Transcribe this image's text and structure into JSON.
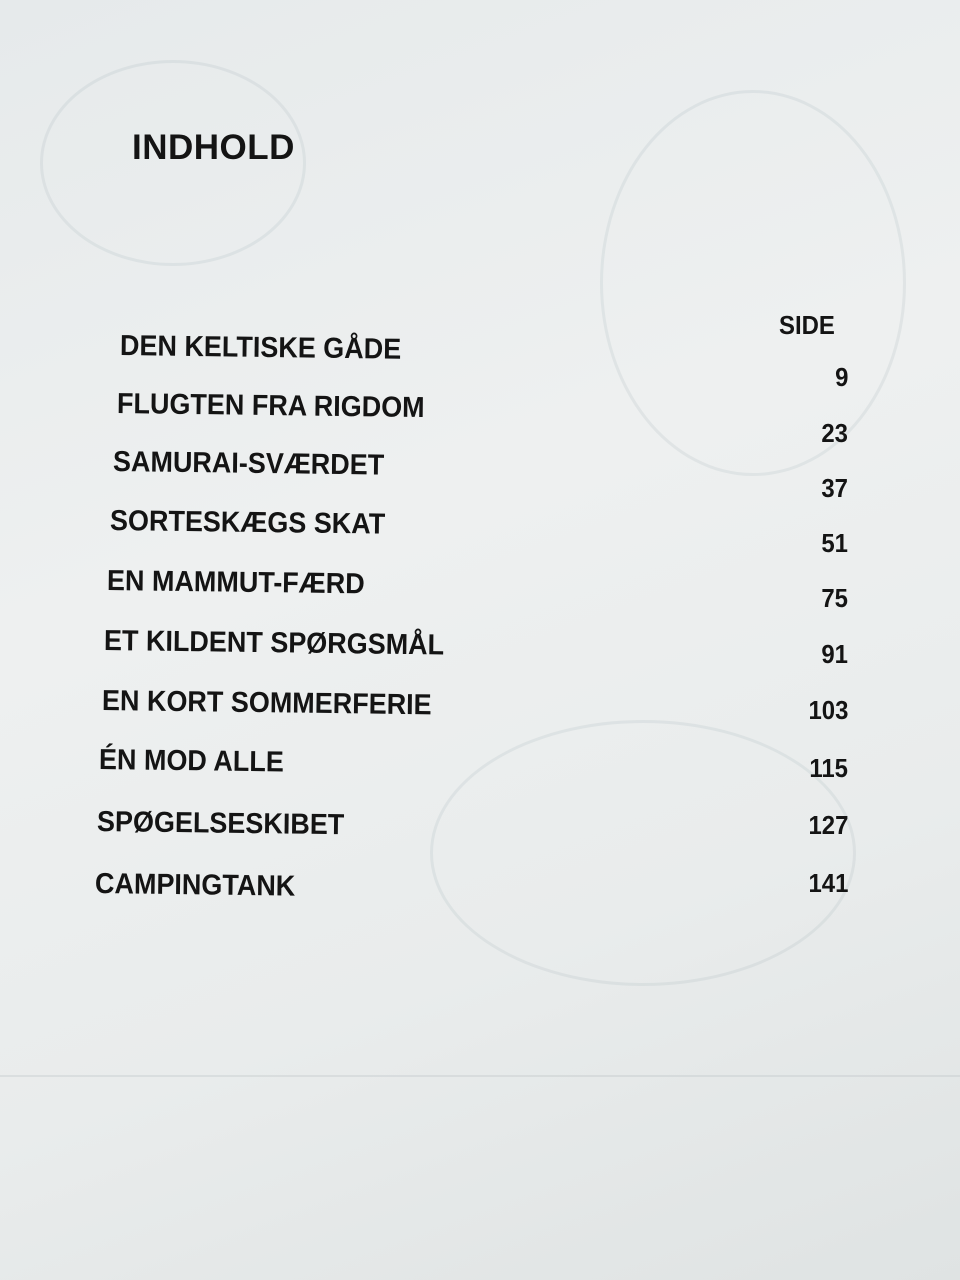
{
  "toc": {
    "heading": "INDHOLD",
    "page_column_label": "SIDE",
    "entries": [
      {
        "title": "DEN KELTISKE GÅDE",
        "page": "9"
      },
      {
        "title": "FLUGTEN FRA RIGDOM",
        "page": "23"
      },
      {
        "title": "SAMURAI-SVÆRDET",
        "page": "37"
      },
      {
        "title": "SORTESKÆGS SKAT",
        "page": "51"
      },
      {
        "title": "EN MAMMUT-FÆRD",
        "page": "75"
      },
      {
        "title": "ET KILDENT SPØRGSMÅL",
        "page": "91"
      },
      {
        "title": "EN KORT SOMMERFERIE",
        "page": "103"
      },
      {
        "title": "ÉN MOD ALLE",
        "page": "115"
      },
      {
        "title": "SPØGELSESKIBET",
        "page": "127"
      },
      {
        "title": "CAMPINGTANK",
        "page": "141"
      }
    ]
  }
}
